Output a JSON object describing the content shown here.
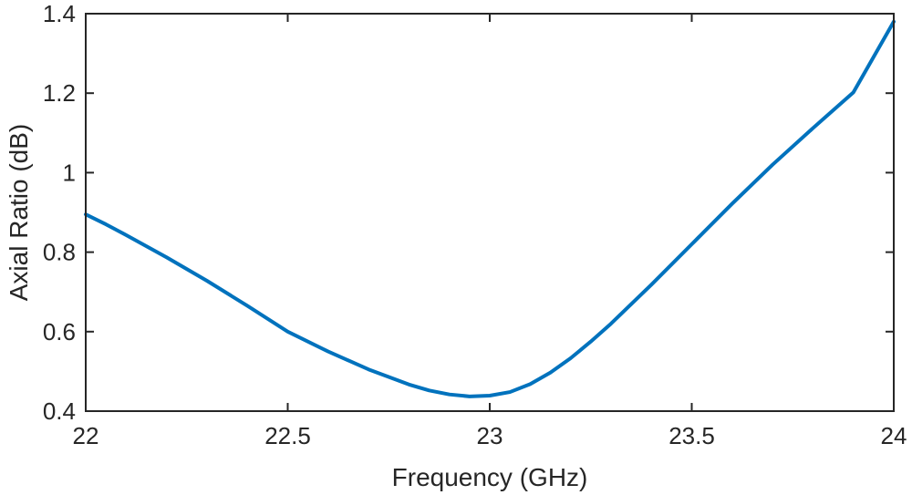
{
  "chart_data": {
    "type": "line",
    "xlabel": "Frequency (GHz)",
    "ylabel": "Axial Ratio (dB)",
    "xlim": [
      22,
      24
    ],
    "ylim": [
      0.4,
      1.4
    ],
    "x_ticks": [
      22,
      22.5,
      23,
      23.5,
      24
    ],
    "x_tick_labels": [
      "22",
      "22.5",
      "23",
      "23.5",
      "24"
    ],
    "y_ticks": [
      0.4,
      0.6,
      0.8,
      1.0,
      1.2,
      1.4
    ],
    "y_tick_labels": [
      "0.4",
      "0.6",
      "0.8",
      "1",
      "1.2",
      "1.4"
    ],
    "grid": false,
    "series": [
      {
        "color": "#0072BD",
        "x": [
          22.0,
          22.05,
          22.1,
          22.2,
          22.3,
          22.4,
          22.5,
          22.6,
          22.7,
          22.8,
          22.85,
          22.9,
          22.95,
          23.0,
          23.05,
          23.1,
          23.15,
          23.2,
          23.25,
          23.3,
          23.4,
          23.5,
          23.6,
          23.7,
          23.8,
          23.9,
          24.0
        ],
        "y": [
          0.895,
          0.87,
          0.843,
          0.787,
          0.728,
          0.665,
          0.6,
          0.55,
          0.505,
          0.467,
          0.452,
          0.442,
          0.437,
          0.439,
          0.448,
          0.468,
          0.497,
          0.533,
          0.575,
          0.62,
          0.718,
          0.82,
          0.922,
          1.02,
          1.112,
          1.202,
          1.38
        ]
      }
    ]
  }
}
